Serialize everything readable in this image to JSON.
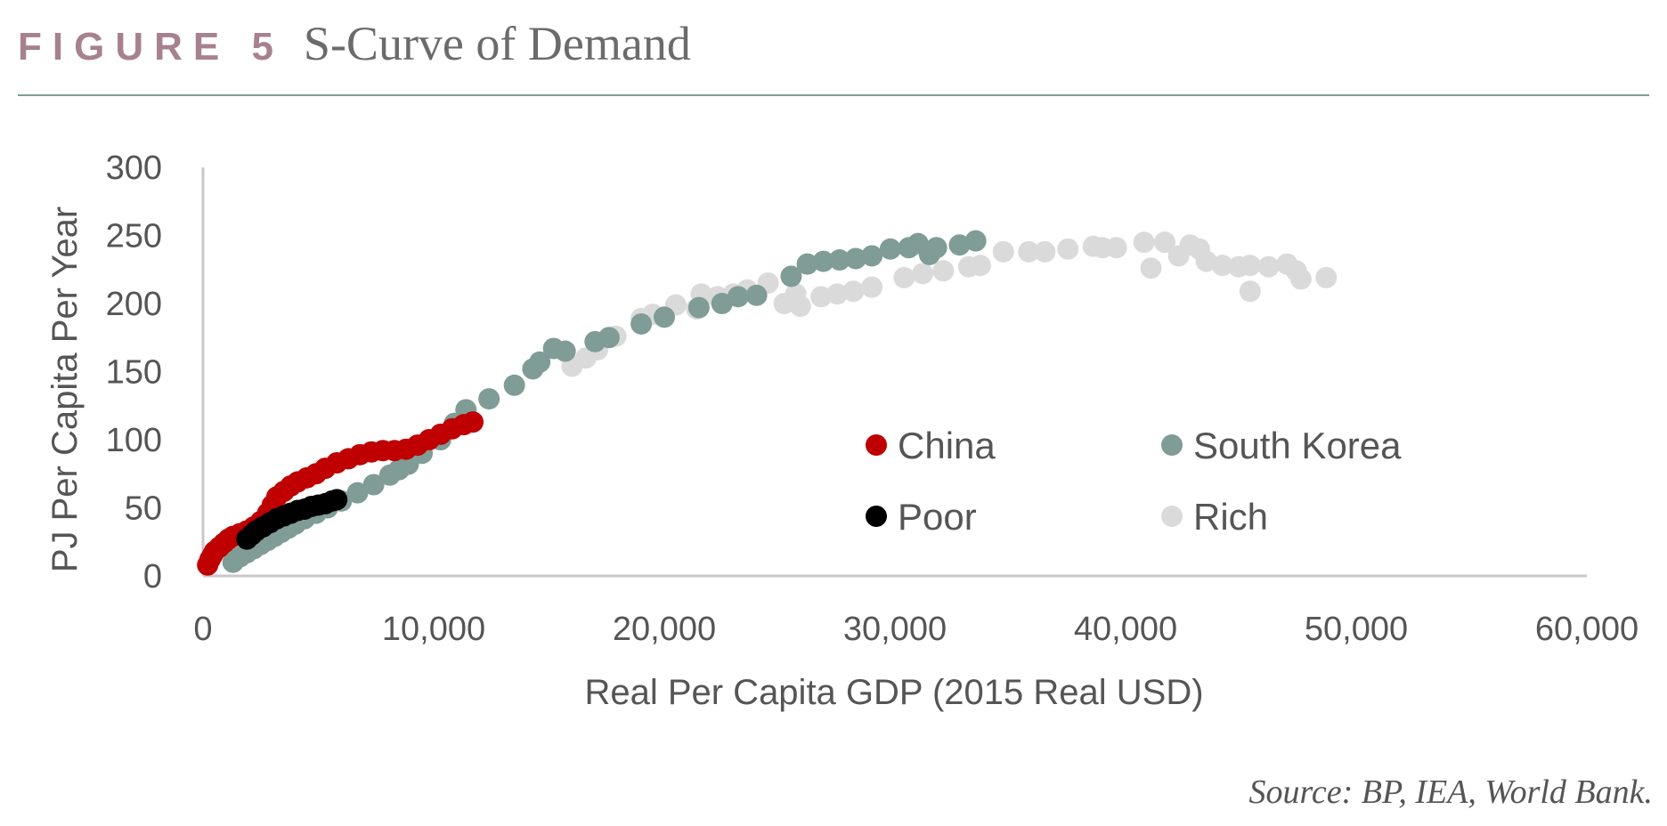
{
  "header": {
    "label": "FIGURE 5",
    "title": "S-Curve of Demand"
  },
  "source": "Source: BP, IEA, World Bank.",
  "chart_data": {
    "type": "scatter",
    "xlabel": "Real Per Capita GDP (2015 Real USD)",
    "ylabel": "PJ Per Capita Per Year",
    "xlim": [
      0,
      60000
    ],
    "ylim": [
      0,
      300
    ],
    "xticks": [
      "0",
      "10,000",
      "20,000",
      "30,000",
      "40,000",
      "50,000",
      "60,000"
    ],
    "yticks": [
      "0",
      "50",
      "100",
      "150",
      "200",
      "250",
      "300"
    ],
    "grid": false,
    "legend": "inside-center-right",
    "series": [
      {
        "name": "China",
        "color": "#c00000",
        "points": [
          [
            200,
            8
          ],
          [
            300,
            12
          ],
          [
            400,
            15
          ],
          [
            500,
            18
          ],
          [
            700,
            21
          ],
          [
            900,
            24
          ],
          [
            1100,
            27
          ],
          [
            1300,
            29
          ],
          [
            1600,
            31
          ],
          [
            1900,
            33
          ],
          [
            2200,
            36
          ],
          [
            2500,
            40
          ],
          [
            2800,
            46
          ],
          [
            3000,
            52
          ],
          [
            3200,
            58
          ],
          [
            3500,
            62
          ],
          [
            3800,
            66
          ],
          [
            4100,
            69
          ],
          [
            4500,
            72
          ],
          [
            4900,
            75
          ],
          [
            5300,
            79
          ],
          [
            5800,
            83
          ],
          [
            6300,
            86
          ],
          [
            6800,
            89
          ],
          [
            7300,
            91
          ],
          [
            7800,
            92
          ],
          [
            8300,
            92
          ],
          [
            8800,
            93
          ],
          [
            9300,
            96
          ],
          [
            9800,
            100
          ],
          [
            10300,
            104
          ],
          [
            10800,
            108
          ],
          [
            11300,
            111
          ],
          [
            11700,
            113
          ]
        ]
      },
      {
        "name": "South Korea",
        "color": "#7f9c97",
        "points": [
          [
            1300,
            10
          ],
          [
            1600,
            14
          ],
          [
            1900,
            17
          ],
          [
            2200,
            20
          ],
          [
            2500,
            23
          ],
          [
            2800,
            26
          ],
          [
            3100,
            29
          ],
          [
            3400,
            32
          ],
          [
            3700,
            35
          ],
          [
            4000,
            38
          ],
          [
            4400,
            42
          ],
          [
            4900,
            46
          ],
          [
            5400,
            50
          ],
          [
            6000,
            55
          ],
          [
            6700,
            61
          ],
          [
            7400,
            67
          ],
          [
            8100,
            74
          ],
          [
            8500,
            78
          ],
          [
            8900,
            82
          ],
          [
            9500,
            90
          ],
          [
            10300,
            100
          ],
          [
            10900,
            112
          ],
          [
            11400,
            122
          ],
          [
            12400,
            130
          ],
          [
            13500,
            140
          ],
          [
            14300,
            152
          ],
          [
            14600,
            157
          ],
          [
            15200,
            167
          ],
          [
            15700,
            165
          ],
          [
            17000,
            172
          ],
          [
            17600,
            175
          ],
          [
            19000,
            185
          ],
          [
            20000,
            190
          ],
          [
            21500,
            197
          ],
          [
            22500,
            200
          ],
          [
            23200,
            205
          ],
          [
            24000,
            206
          ],
          [
            25500,
            220
          ],
          [
            26200,
            229
          ],
          [
            26900,
            231
          ],
          [
            27600,
            232
          ],
          [
            28300,
            233
          ],
          [
            29000,
            235
          ],
          [
            29800,
            240
          ],
          [
            30600,
            241
          ],
          [
            31000,
            244
          ],
          [
            31500,
            236
          ],
          [
            31800,
            241
          ],
          [
            32800,
            243
          ],
          [
            33500,
            246
          ]
        ]
      },
      {
        "name": "Poor",
        "color": "#000000",
        "points": [
          [
            1900,
            27
          ],
          [
            2100,
            30
          ],
          [
            2300,
            33
          ],
          [
            2600,
            36
          ],
          [
            2900,
            39
          ],
          [
            3200,
            42
          ],
          [
            3500,
            44
          ],
          [
            3800,
            46
          ],
          [
            4100,
            48
          ],
          [
            4400,
            49
          ],
          [
            4700,
            51
          ],
          [
            5000,
            52
          ],
          [
            5300,
            53
          ],
          [
            5600,
            55
          ],
          [
            5800,
            56
          ]
        ]
      },
      {
        "name": "Rich",
        "color": "#dadada",
        "points": [
          [
            16000,
            154
          ],
          [
            16600,
            160
          ],
          [
            17100,
            166
          ],
          [
            17900,
            176
          ],
          [
            19000,
            189
          ],
          [
            19500,
            192
          ],
          [
            20500,
            199
          ],
          [
            21400,
            196
          ],
          [
            21600,
            207
          ],
          [
            22300,
            205
          ],
          [
            23000,
            207
          ],
          [
            23600,
            210
          ],
          [
            24500,
            215
          ],
          [
            25200,
            200
          ],
          [
            25700,
            207
          ],
          [
            25900,
            198
          ],
          [
            26800,
            205
          ],
          [
            27500,
            207
          ],
          [
            28200,
            209
          ],
          [
            29000,
            212
          ],
          [
            30400,
            219
          ],
          [
            31200,
            222
          ],
          [
            32100,
            224
          ],
          [
            33200,
            227
          ],
          [
            33700,
            228
          ],
          [
            34700,
            238
          ],
          [
            35800,
            238
          ],
          [
            36500,
            238
          ],
          [
            37500,
            240
          ],
          [
            38600,
            242
          ],
          [
            39000,
            241
          ],
          [
            39600,
            241
          ],
          [
            40800,
            245
          ],
          [
            41100,
            226
          ],
          [
            41700,
            245
          ],
          [
            42300,
            235
          ],
          [
            42800,
            243
          ],
          [
            43200,
            240
          ],
          [
            43500,
            231
          ],
          [
            44200,
            228
          ],
          [
            44900,
            227
          ],
          [
            45400,
            228
          ],
          [
            45400,
            209
          ],
          [
            46200,
            227
          ],
          [
            47000,
            229
          ],
          [
            47400,
            224
          ],
          [
            47600,
            218
          ],
          [
            48700,
            219
          ]
        ]
      }
    ]
  }
}
